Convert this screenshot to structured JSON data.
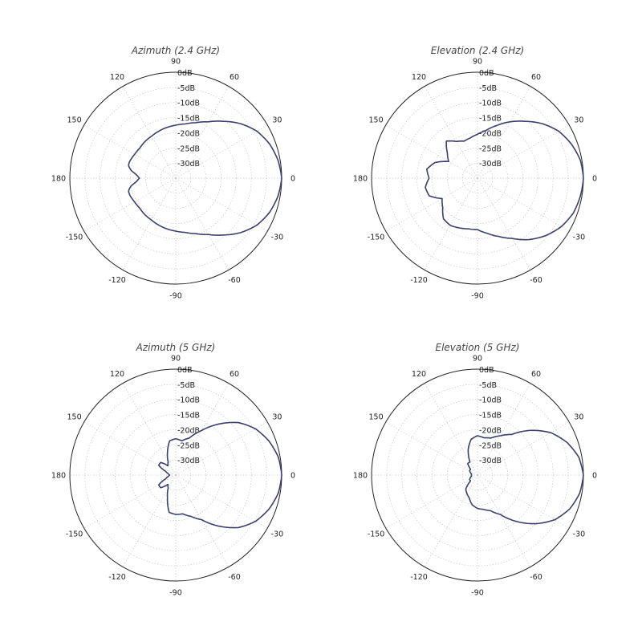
{
  "chart_data": [
    {
      "type": "polar",
      "title": "Azimuth (2.4 GHz)",
      "angle_labels": [
        "90",
        "60",
        "30",
        "0",
        "-30",
        "-60",
        "-90",
        "-120",
        "-150",
        "180",
        "150",
        "120"
      ],
      "angle_values": [
        90,
        60,
        30,
        0,
        -30,
        -60,
        -90,
        -120,
        -150,
        180,
        150,
        120
      ],
      "radial_labels": [
        "0dB",
        "-5dB",
        "-10dB",
        "-15dB",
        "-20dB",
        "-25dB",
        "-30dB"
      ],
      "radial_values": [
        0,
        -5,
        -10,
        -15,
        -20,
        -25,
        -30
      ],
      "rlim": [
        -35,
        0
      ],
      "grid": true,
      "series": [
        {
          "color": "#3a3f6e",
          "theta": [
            0,
            10,
            20,
            30,
            40,
            50,
            60,
            70,
            80,
            90,
            100,
            110,
            120,
            130,
            140,
            150,
            160,
            165,
            170,
            175,
            180,
            185,
            190,
            195,
            200,
            210,
            220,
            230,
            240,
            250,
            260,
            270,
            280,
            290,
            300,
            310,
            320,
            330,
            340,
            350
          ],
          "r_db": [
            0,
            -0.7,
            -2,
            -4,
            -7,
            -10.5,
            -13.5,
            -15.5,
            -16.8,
            -17.5,
            -18,
            -18.5,
            -19,
            -19.2,
            -19.5,
            -19.3,
            -18.8,
            -18.8,
            -20,
            -22,
            -23,
            -22,
            -20,
            -18.8,
            -18.8,
            -19.3,
            -19.5,
            -19.2,
            -19,
            -18.5,
            -18,
            -17.5,
            -16.8,
            -15.5,
            -13.5,
            -10.5,
            -7,
            -4,
            -2,
            -0.7
          ]
        }
      ]
    },
    {
      "type": "polar",
      "title": "Elevation (2.4 GHz)",
      "angle_labels": [
        "90",
        "60",
        "30",
        "0",
        "-30",
        "-60",
        "-90",
        "-120",
        "-150",
        "180",
        "150",
        "120"
      ],
      "angle_values": [
        90,
        60,
        30,
        0,
        -30,
        -60,
        -90,
        -120,
        -150,
        180,
        150,
        120
      ],
      "radial_labels": [
        "0dB",
        "-5dB",
        "-10dB",
        "-15dB",
        "-20dB",
        "-25dB",
        "-30dB"
      ],
      "radial_values": [
        0,
        -5,
        -10,
        -15,
        -20,
        -25,
        -30
      ],
      "rlim": [
        -35,
        0
      ],
      "grid": true,
      "series": [
        {
          "color": "#3a3f6e",
          "theta": [
            0,
            10,
            20,
            30,
            40,
            50,
            60,
            70,
            80,
            90,
            100,
            110,
            120,
            130,
            140,
            150,
            160,
            170,
            180,
            190,
            200,
            210,
            220,
            230,
            240,
            250,
            260,
            270,
            280,
            290,
            300,
            310,
            320,
            330,
            340,
            350
          ],
          "r_db": [
            0,
            -0.5,
            -2,
            -4,
            -7,
            -10.5,
            -13.5,
            -16.5,
            -19,
            -20.5,
            -21.5,
            -22,
            -21,
            -19,
            -22,
            -24,
            -20,
            -18,
            -19,
            -17.5,
            -18,
            -21.5,
            -20,
            -17.5,
            -17,
            -17.5,
            -18,
            -18,
            -16.5,
            -14.5,
            -12,
            -8.5,
            -5.5,
            -3,
            -1.3,
            -0.5
          ]
        }
      ]
    },
    {
      "type": "polar",
      "title": "Azimuth (5 GHz)",
      "angle_labels": [
        "90",
        "60",
        "30",
        "0",
        "-30",
        "-60",
        "-90",
        "-120",
        "-150",
        "180",
        "150",
        "120"
      ],
      "angle_values": [
        90,
        60,
        30,
        0,
        -30,
        -60,
        -90,
        -120,
        -150,
        180,
        150,
        120
      ],
      "radial_labels": [
        "0dB",
        "-5dB",
        "-10dB",
        "-15dB",
        "-20dB",
        "-25dB",
        "-30dB"
      ],
      "radial_values": [
        0,
        -5,
        -10,
        -15,
        -20,
        -25,
        -30
      ],
      "rlim": [
        -35,
        0
      ],
      "grid": true,
      "series": [
        {
          "color": "#3a3f6e",
          "theta": [
            0,
            10,
            20,
            30,
            40,
            50,
            60,
            70,
            80,
            90,
            100,
            110,
            120,
            130,
            140,
            150,
            160,
            170,
            180,
            190,
            200,
            210,
            220,
            230,
            240,
            250,
            260,
            270,
            280,
            290,
            300,
            310,
            320,
            330,
            340,
            350
          ],
          "r_db": [
            0,
            -0.6,
            -2.2,
            -4.5,
            -8,
            -13,
            -18,
            -22,
            -23.5,
            -23,
            -23.5,
            -27,
            -30,
            -31,
            -28.5,
            -28.5,
            -31.5,
            -32.5,
            -33,
            -32.5,
            -31.5,
            -28.5,
            -28.5,
            -31,
            -30,
            -27,
            -22.5,
            -22,
            -22,
            -20.5,
            -18,
            -13,
            -8,
            -4.5,
            -2.2,
            -0.6
          ]
        }
      ]
    },
    {
      "type": "polar",
      "title": "Elevation (5 GHz)",
      "angle_labels": [
        "90",
        "60",
        "30",
        "0",
        "-30",
        "-60",
        "-90",
        "-120",
        "-150",
        "180",
        "150",
        "120"
      ],
      "angle_values": [
        90,
        60,
        30,
        0,
        -30,
        -60,
        -90,
        -120,
        -150,
        180,
        150,
        120
      ],
      "radial_labels": [
        "0dB",
        "-5dB",
        "-10dB",
        "-15dB",
        "-20dB",
        "-25dB",
        "-30dB"
      ],
      "radial_values": [
        0,
        -5,
        -10,
        -15,
        -20,
        -25,
        -30
      ],
      "rlim": [
        -35,
        0
      ],
      "grid": true,
      "series": [
        {
          "color": "#3a3f6e",
          "theta": [
            0,
            10,
            20,
            30,
            40,
            50,
            60,
            70,
            80,
            90,
            100,
            110,
            120,
            130,
            140,
            150,
            160,
            170,
            180,
            190,
            200,
            210,
            220,
            230,
            240,
            250,
            260,
            270,
            280,
            290,
            300,
            310,
            320,
            330,
            340,
            350
          ],
          "r_db": [
            0,
            -1,
            -3.5,
            -7,
            -12,
            -17.5,
            -20,
            -22,
            -22.5,
            -22,
            -23,
            -26,
            -30,
            -30,
            -32,
            -32,
            -32.5,
            -33,
            -33,
            -33,
            -32.5,
            -32,
            -32,
            -29,
            -28,
            -27,
            -25,
            -24,
            -23.5,
            -22.5,
            -20,
            -15,
            -10,
            -5.5,
            -2.5,
            -0.7
          ]
        }
      ]
    }
  ]
}
